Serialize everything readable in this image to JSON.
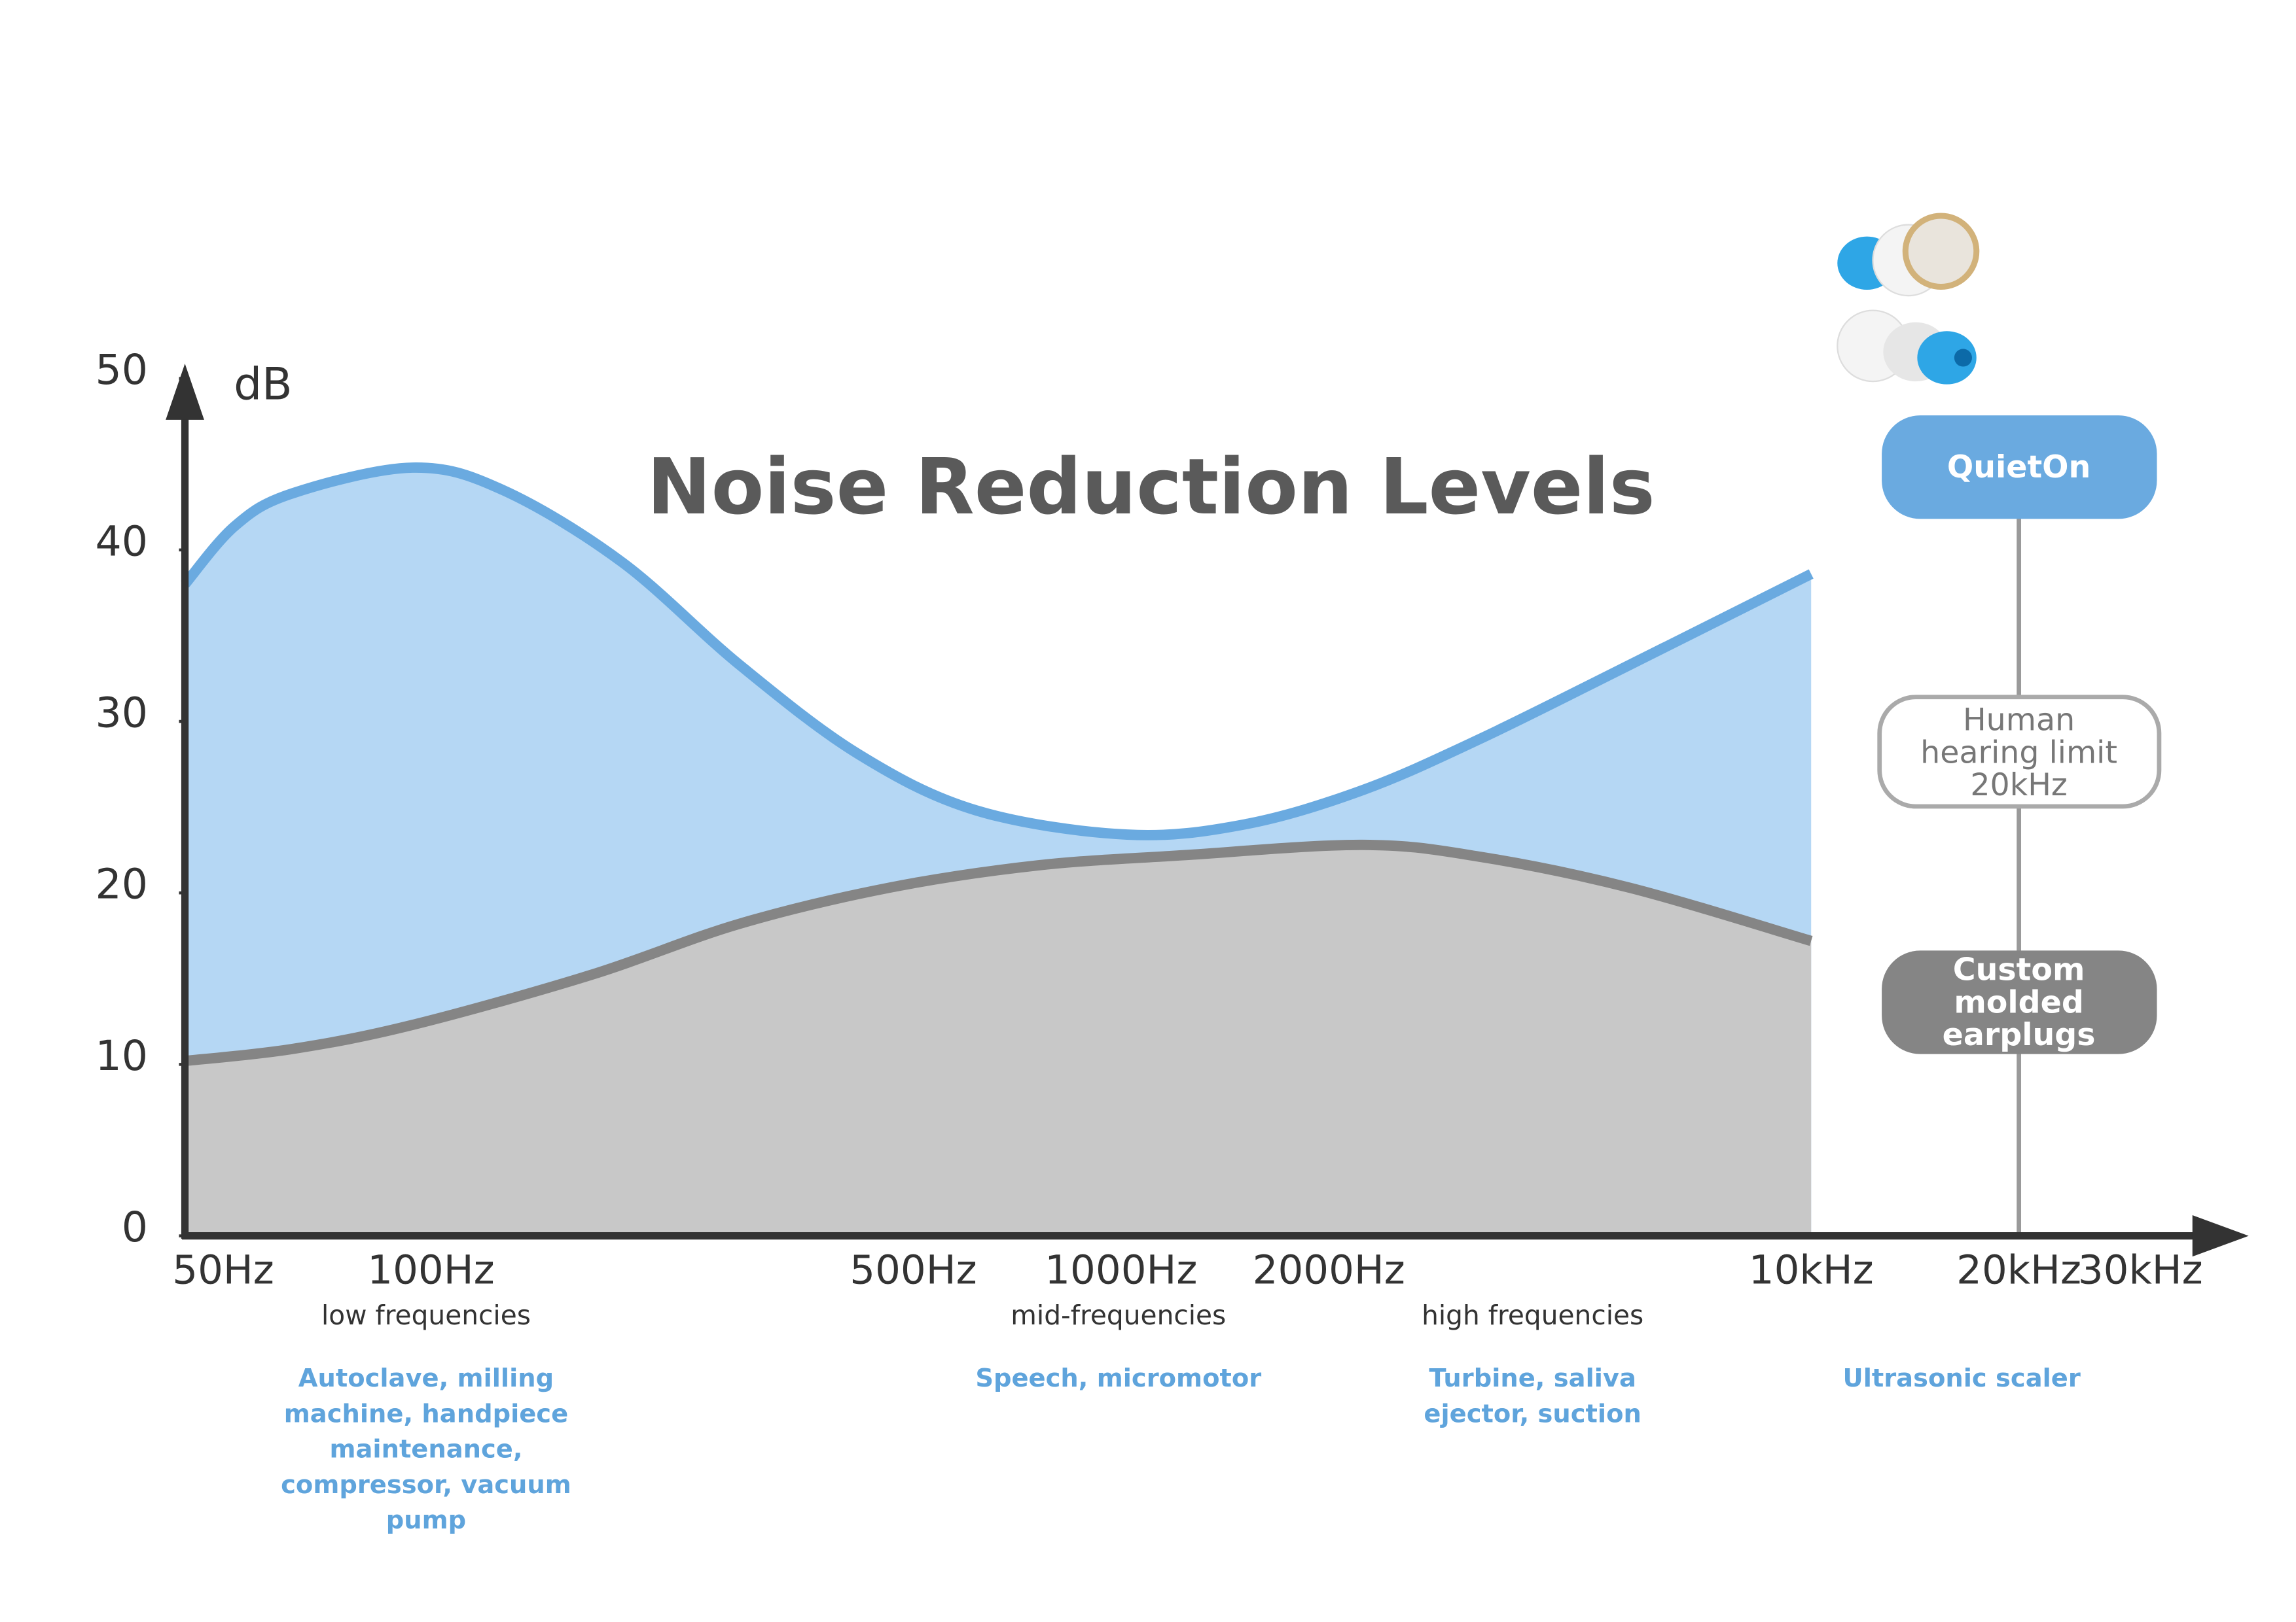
{
  "chart_data": {
    "type": "area",
    "title": "Noise Reduction Levels",
    "y_label": "dB",
    "xscale": "log",
    "xlim": [
      44,
      42000
    ],
    "xticks": [
      {
        "value": 50,
        "label": "50Hz"
      },
      {
        "value": 100,
        "label": "100Hz"
      },
      {
        "value": 500,
        "label": "500Hz"
      },
      {
        "value": 1000,
        "label": "1000Hz"
      },
      {
        "value": 2000,
        "label": "2000Hz"
      },
      {
        "value": 10000,
        "label": "10kHz"
      },
      {
        "value": 20000,
        "label": "20kHz"
      },
      {
        "value": 30000,
        "label": "30kHz"
      }
    ],
    "ylim": [
      0,
      50
    ],
    "yticks": [
      0,
      10,
      20,
      30,
      40,
      50
    ],
    "series": [
      {
        "name": "QuietOn",
        "color": "#6aaae0",
        "fill_color": "#b5d7f4",
        "x": [
          44,
          52,
          63,
          94,
          127,
          189,
          280,
          416,
          618,
          1020,
          1512,
          2241,
          3320,
          5460,
          10000
        ],
        "values": [
          38,
          41.4,
          43.3,
          44.8,
          43.5,
          39.3,
          33.3,
          28.1,
          24.8,
          23.4,
          24,
          26,
          29,
          33.3,
          38.6
        ]
      },
      {
        "name": "Custom molded earplugs",
        "color": "#858585",
        "fill_color": "#c8c8c8",
        "x": [
          44,
          63,
          94,
          170,
          280,
          461,
          756,
          1235,
          2241,
          3320,
          5460,
          10000
        ],
        "values": [
          10.2,
          10.9,
          12.3,
          15.2,
          18.2,
          20.3,
          21.6,
          22.2,
          22.8,
          22.1,
          20.3,
          17.2
        ]
      }
    ],
    "hearing_limit": "Human hearing limit 20kHz",
    "bands": [
      {
        "label": "low frequencies",
        "sources": "Autoclave, milling machine, handpiece maintenance, compressor, vacuum pump"
      },
      {
        "label": "mid-frequencies",
        "sources": "Speech, micromotor"
      },
      {
        "label": "high frequencies",
        "sources": "Turbine, saliva ejector, suction"
      },
      {
        "sources": "Ultrasonic scaler"
      }
    ]
  }
}
